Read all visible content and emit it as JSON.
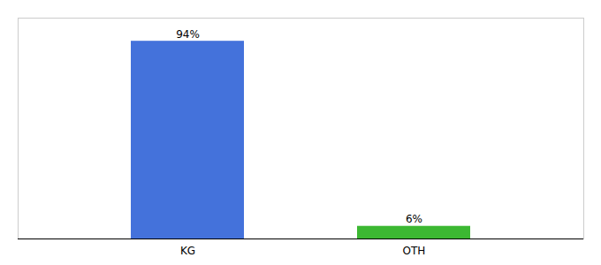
{
  "chart_data": {
    "type": "bar",
    "categories": [
      "KG",
      "OTH"
    ],
    "values": [
      94,
      6
    ],
    "value_labels": [
      "94%",
      "6%"
    ],
    "colors": [
      "#4472db",
      "#3cb832"
    ],
    "ylim": [
      0,
      105
    ],
    "data_labels": true,
    "tick_labels": "x"
  }
}
